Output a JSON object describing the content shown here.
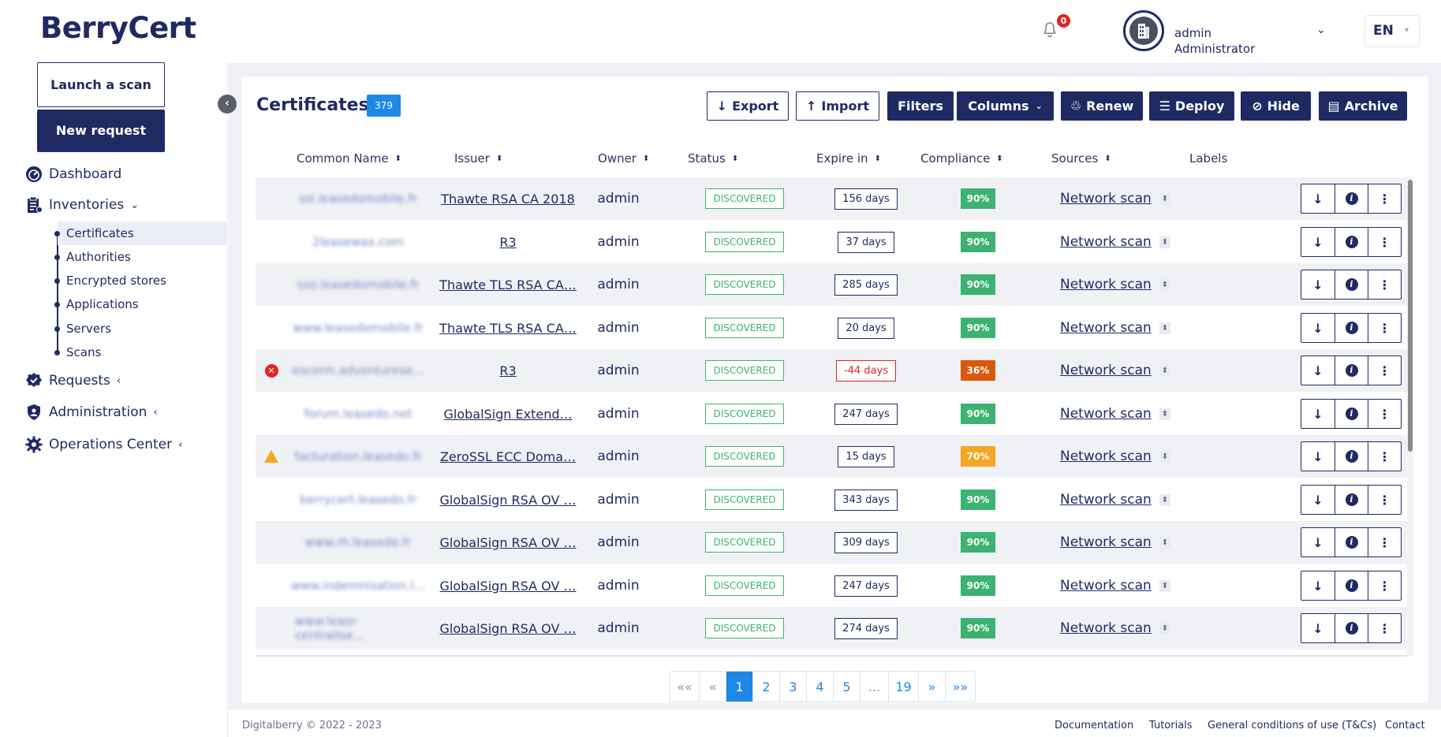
{
  "app": {
    "logo": "BerryCert"
  },
  "header": {
    "notification_count": "0",
    "user_name": "admin",
    "user_role": "Administrator",
    "user_chevron": "⌄",
    "language": "EN",
    "language_caret": "▾"
  },
  "sidebar": {
    "launch_scan": "Launch a scan",
    "new_request": "New request",
    "items": [
      {
        "label": "Dashboard",
        "icon": "dashboard-gauge-icon",
        "chevron": ""
      },
      {
        "label": "Inventories",
        "icon": "inventory-clipboard-icon",
        "chevron": "⌄"
      },
      {
        "label": "Requests",
        "icon": "requests-badge-icon",
        "chevron": "‹"
      },
      {
        "label": "Administration",
        "icon": "administration-shield-icon",
        "chevron": "‹"
      },
      {
        "label": "Operations Center",
        "icon": "operations-gear-icon",
        "chevron": "‹"
      }
    ],
    "sub_items": [
      "Certificates",
      "Authorities",
      "Encrypted stores",
      "Applications",
      "Servers",
      "Scans"
    ],
    "active_sub": "Certificates"
  },
  "main": {
    "title": "Certificates",
    "count": "379",
    "toolbar": {
      "export": "Export",
      "import": "Import",
      "filters": "Filters",
      "columns": "Columns",
      "renew": "Renew",
      "deploy": "Deploy",
      "hide": "Hide",
      "archive": "Archive"
    },
    "columns": [
      "Common Name",
      "Issuer",
      "Owner",
      "Status",
      "Expire in",
      "Compliance",
      "Sources",
      "Labels"
    ],
    "rows": [
      {
        "alert": "",
        "common_name": "ssl.leasedomobile.fr",
        "issuer": "Thawte RSA CA 2018",
        "owner": "admin",
        "status": "DISCOVERED",
        "expire": "156 days",
        "expire_negative": false,
        "compliance": "90%",
        "compliance_color": "#3cb371",
        "source": "Network scan"
      },
      {
        "alert": "",
        "common_name": "2leasewax.com",
        "issuer": "R3",
        "owner": "admin",
        "status": "DISCOVERED",
        "expire": "37 days",
        "expire_negative": false,
        "compliance": "90%",
        "compliance_color": "#3cb371",
        "source": "Network scan"
      },
      {
        "alert": "",
        "common_name": "sso.leasedomobile.fr",
        "issuer": "Thawte TLS RSA CA…",
        "owner": "admin",
        "status": "DISCOVERED",
        "expire": "285 days",
        "expire_negative": false,
        "compliance": "90%",
        "compliance_color": "#3cb371",
        "source": "Network scan"
      },
      {
        "alert": "",
        "common_name": "www.leasedomobile.fr",
        "issuer": "Thawte TLS RSA CA…",
        "owner": "admin",
        "status": "DISCOVERED",
        "expire": "20 days",
        "expire_negative": false,
        "compliance": "90%",
        "compliance_color": "#3cb371",
        "source": "Network scan"
      },
      {
        "alert": "error",
        "common_name": "escorm.adventurese…",
        "issuer": "R3",
        "owner": "admin",
        "status": "DISCOVERED",
        "expire": "-44 days",
        "expire_negative": true,
        "compliance": "36%",
        "compliance_color": "#d9590b",
        "source": "Network scan"
      },
      {
        "alert": "",
        "common_name": "forum.leasedo.net",
        "issuer": "GlobalSign Extend…",
        "owner": "admin",
        "status": "DISCOVERED",
        "expire": "247 days",
        "expire_negative": false,
        "compliance": "90%",
        "compliance_color": "#3cb371",
        "source": "Network scan"
      },
      {
        "alert": "warning",
        "common_name": "facturation.leasedo.fr",
        "issuer": "ZeroSSL ECC Doma…",
        "owner": "admin",
        "status": "DISCOVERED",
        "expire": "15 days",
        "expire_negative": false,
        "compliance": "70%",
        "compliance_color": "#f5a623",
        "source": "Network scan"
      },
      {
        "alert": "",
        "common_name": "berrycert.leasedo.fr",
        "issuer": "GlobalSign RSA OV …",
        "owner": "admin",
        "status": "DISCOVERED",
        "expire": "343 days",
        "expire_negative": false,
        "compliance": "90%",
        "compliance_color": "#3cb371",
        "source": "Network scan"
      },
      {
        "alert": "",
        "common_name": "www.rh.leasedo.fr",
        "issuer": "GlobalSign RSA OV …",
        "owner": "admin",
        "status": "DISCOVERED",
        "expire": "309 days",
        "expire_negative": false,
        "compliance": "90%",
        "compliance_color": "#3cb371",
        "source": "Network scan"
      },
      {
        "alert": "",
        "common_name": "www.indemnisation.l…",
        "issuer": "GlobalSign RSA OV …",
        "owner": "admin",
        "status": "DISCOVERED",
        "expire": "247 days",
        "expire_negative": false,
        "compliance": "90%",
        "compliance_color": "#3cb371",
        "source": "Network scan"
      },
      {
        "alert": "",
        "common_name": "www.leasr-centralise…",
        "issuer": "GlobalSign RSA OV …",
        "owner": "admin",
        "status": "DISCOVERED",
        "expire": "274 days",
        "expire_negative": false,
        "compliance": "90%",
        "compliance_color": "#3cb371",
        "source": "Network scan"
      }
    ]
  },
  "pagination": {
    "items": [
      "««",
      "«",
      "1",
      "2",
      "3",
      "4",
      "5",
      "...",
      "19",
      "»",
      "»»"
    ],
    "active": "1"
  },
  "footer": {
    "copyright": "Digitalberry © 2022 - 2023",
    "links": [
      "Documentation",
      "Tutorials",
      "General conditions of use (T&Cs)",
      "Contact"
    ]
  },
  "colors": {
    "brand_navy": "#1f2a63",
    "accent_blue": "#1e88e5",
    "status_green": "#3cb371",
    "danger_red": "#e02424",
    "warning_orange": "#f5a623",
    "low_compliance": "#d9590b"
  }
}
